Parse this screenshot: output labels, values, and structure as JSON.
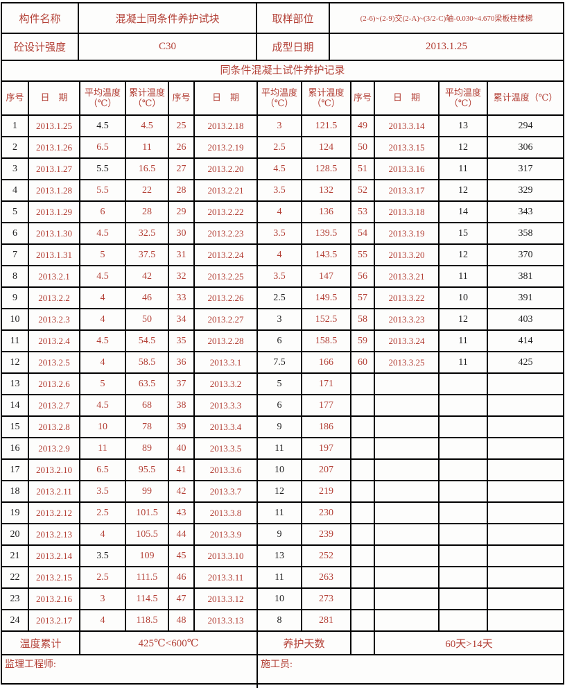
{
  "info": {
    "component_label": "构件名称",
    "component_value": "混凝土同条件养护试块",
    "sampling_label": "取样部位",
    "sampling_value": "(2-6)~(2-9)交(2-A)~(3/2-C)轴-0.030~4.670梁板柱楼梯",
    "strength_label": "砼设计强度",
    "strength_value": "C30",
    "forming_label": "成型日期",
    "forming_value": "2013.1.25"
  },
  "title": "同条件混凝土试件养护记录",
  "headers": [
    "序号",
    "日　期",
    "平均温度（℃）",
    "累计温度（℃）",
    "序号",
    "日　期",
    "平均温度（℃）",
    "累计温度（℃）",
    "序号",
    "日　期",
    "平均温度（℃）",
    "累计温度（℃）"
  ],
  "groups": [
    {
      "rows": [
        [
          "1",
          "2013.1.25",
          "4.5",
          "4.5",
          "k",
          "k",
          "r"
        ],
        [
          "2",
          "2013.1.26",
          "6.5",
          "11",
          "k",
          "r",
          "r"
        ],
        [
          "3",
          "2013.1.27",
          "5.5",
          "16.5",
          "k",
          "k",
          "r"
        ],
        [
          "4",
          "2013.1.28",
          "5.5",
          "22",
          "k",
          "r",
          "r"
        ],
        [
          "5",
          "2013.1.29",
          "6",
          "28",
          "k",
          "r",
          "r"
        ],
        [
          "6",
          "2013.1.30",
          "4.5",
          "32.5",
          "k",
          "r",
          "r"
        ],
        [
          "7",
          "2013.1.31",
          "5",
          "37.5",
          "k",
          "r",
          "r"
        ],
        [
          "8",
          "2013.2.1",
          "4.5",
          "42",
          "k",
          "r",
          "r"
        ],
        [
          "9",
          "2013.2.2",
          "4",
          "46",
          "k",
          "r",
          "r"
        ],
        [
          "10",
          "2013.2.3",
          "4",
          "50",
          "k",
          "r",
          "r"
        ],
        [
          "11",
          "2013.2.4",
          "4.5",
          "54.5",
          "k",
          "r",
          "r"
        ],
        [
          "12",
          "2013.2.5",
          "4",
          "58.5",
          "k",
          "r",
          "r"
        ],
        [
          "13",
          "2013.2.6",
          "5",
          "63.5",
          "k",
          "r",
          "r"
        ],
        [
          "14",
          "2013.2.7",
          "4.5",
          "68",
          "k",
          "r",
          "r"
        ],
        [
          "15",
          "2013.2.8",
          "10",
          "78",
          "k",
          "r",
          "r"
        ],
        [
          "16",
          "2013.2.9",
          "11",
          "89",
          "k",
          "r",
          "r"
        ],
        [
          "17",
          "2013.2.10",
          "6.5",
          "95.5",
          "k",
          "r",
          "r"
        ],
        [
          "18",
          "2013.2.11",
          "3.5",
          "99",
          "k",
          "r",
          "r"
        ],
        [
          "19",
          "2013.2.12",
          "2.5",
          "101.5",
          "k",
          "r",
          "r"
        ],
        [
          "20",
          "2013.2.13",
          "4",
          "105.5",
          "k",
          "r",
          "r"
        ],
        [
          "21",
          "2013.2.14",
          "3.5",
          "109",
          "k",
          "k",
          "r"
        ],
        [
          "22",
          "2013.2.15",
          "2.5",
          "111.5",
          "k",
          "r",
          "r"
        ],
        [
          "23",
          "2013.2.16",
          "3",
          "114.5",
          "k",
          "r",
          "r"
        ],
        [
          "24",
          "2013.2.17",
          "4",
          "118.5",
          "k",
          "r",
          "r"
        ]
      ]
    },
    {
      "rows": [
        [
          "25",
          "2013.2.18",
          "3",
          "121.5",
          "r",
          "r",
          "r"
        ],
        [
          "26",
          "2013.2.19",
          "2.5",
          "124",
          "r",
          "r",
          "r"
        ],
        [
          "27",
          "2013.2.20",
          "4.5",
          "128.5",
          "r",
          "r",
          "r"
        ],
        [
          "28",
          "2013.2.21",
          "3.5",
          "132",
          "r",
          "r",
          "r"
        ],
        [
          "29",
          "2013.2.22",
          "4",
          "136",
          "r",
          "r",
          "r"
        ],
        [
          "30",
          "2013.2.23",
          "3.5",
          "139.5",
          "r",
          "r",
          "r"
        ],
        [
          "31",
          "2013.2.24",
          "4",
          "143.5",
          "r",
          "r",
          "r"
        ],
        [
          "32",
          "2013.2.25",
          "3.5",
          "147",
          "r",
          "r",
          "r"
        ],
        [
          "33",
          "2013.2.26",
          "2.5",
          "149.5",
          "r",
          "k",
          "r"
        ],
        [
          "34",
          "2013.2.27",
          "3",
          "152.5",
          "r",
          "k",
          "r"
        ],
        [
          "35",
          "2013.2.28",
          "6",
          "158.5",
          "r",
          "k",
          "r"
        ],
        [
          "36",
          "2013.3.1",
          "7.5",
          "166",
          "r",
          "k",
          "r"
        ],
        [
          "37",
          "2013.3.2",
          "5",
          "171",
          "r",
          "k",
          "r"
        ],
        [
          "38",
          "2013.3.3",
          "6",
          "177",
          "r",
          "k",
          "r"
        ],
        [
          "39",
          "2013.3.4",
          "9",
          "186",
          "r",
          "k",
          "r"
        ],
        [
          "40",
          "2013.3.5",
          "11",
          "197",
          "r",
          "k",
          "r"
        ],
        [
          "41",
          "2013.3.6",
          "10",
          "207",
          "r",
          "k",
          "r"
        ],
        [
          "42",
          "2013.3.7",
          "12",
          "219",
          "r",
          "k",
          "r"
        ],
        [
          "43",
          "2013.3.8",
          "11",
          "230",
          "r",
          "k",
          "r"
        ],
        [
          "44",
          "2013.3.9",
          "9",
          "239",
          "r",
          "k",
          "r"
        ],
        [
          "45",
          "2013.3.10",
          "13",
          "252",
          "r",
          "k",
          "r"
        ],
        [
          "46",
          "2013.3.11",
          "11",
          "263",
          "r",
          "k",
          "r"
        ],
        [
          "47",
          "2013.3.12",
          "10",
          "273",
          "r",
          "k",
          "r"
        ],
        [
          "48",
          "2013.3.13",
          "8",
          "281",
          "r",
          "k",
          "r"
        ]
      ]
    },
    {
      "rows": [
        [
          "49",
          "2013.3.14",
          "13",
          "294",
          "r",
          "k",
          "k"
        ],
        [
          "50",
          "2013.3.15",
          "12",
          "306",
          "r",
          "k",
          "k"
        ],
        [
          "51",
          "2013.3.16",
          "11",
          "317",
          "r",
          "k",
          "k"
        ],
        [
          "52",
          "2013.3.17",
          "12",
          "329",
          "r",
          "k",
          "k"
        ],
        [
          "53",
          "2013.3.18",
          "14",
          "343",
          "r",
          "k",
          "k"
        ],
        [
          "54",
          "2013.3.19",
          "15",
          "358",
          "r",
          "k",
          "k"
        ],
        [
          "55",
          "2013.3.20",
          "12",
          "370",
          "r",
          "k",
          "k"
        ],
        [
          "56",
          "2013.3.21",
          "11",
          "381",
          "r",
          "k",
          "k"
        ],
        [
          "57",
          "2013.3.22",
          "10",
          "391",
          "r",
          "k",
          "k"
        ],
        [
          "58",
          "2013.3.23",
          "12",
          "403",
          "r",
          "k",
          "k"
        ],
        [
          "59",
          "2013.3.24",
          "11",
          "414",
          "r",
          "k",
          "k"
        ],
        [
          "60",
          "2013.3.25",
          "11",
          "425",
          "r",
          "k",
          "k"
        ],
        [
          "",
          "",
          "",
          "",
          "k",
          "k",
          "k"
        ],
        [
          "",
          "",
          "",
          "",
          "k",
          "k",
          "k"
        ],
        [
          "",
          "",
          "",
          "",
          "k",
          "k",
          "k"
        ],
        [
          "",
          "",
          "",
          "",
          "k",
          "k",
          "k"
        ],
        [
          "",
          "",
          "",
          "",
          "k",
          "k",
          "k"
        ],
        [
          "",
          "",
          "",
          "",
          "k",
          "k",
          "k"
        ],
        [
          "",
          "",
          "",
          "",
          "k",
          "k",
          "k"
        ],
        [
          "",
          "",
          "",
          "",
          "k",
          "k",
          "k"
        ],
        [
          "",
          "",
          "",
          "",
          "k",
          "k",
          "k"
        ],
        [
          "",
          "",
          "",
          "",
          "k",
          "k",
          "k"
        ],
        [
          "",
          "",
          "",
          "",
          "k",
          "k",
          "k"
        ],
        [
          "",
          "",
          "",
          "",
          "k",
          "k",
          "k"
        ]
      ]
    }
  ],
  "summary": {
    "temp_label": "温度累计",
    "temp_value": "425℃<600℃",
    "days_label": "养护天数",
    "spacer": "",
    "days_value": "60天>14天"
  },
  "signatures": {
    "supervisor_label": "监理工程师:",
    "builder_label": "施工员:"
  },
  "colors": {
    "accent_red": "#b34036",
    "text_black": "#1f1f1f",
    "border": "#000000"
  }
}
